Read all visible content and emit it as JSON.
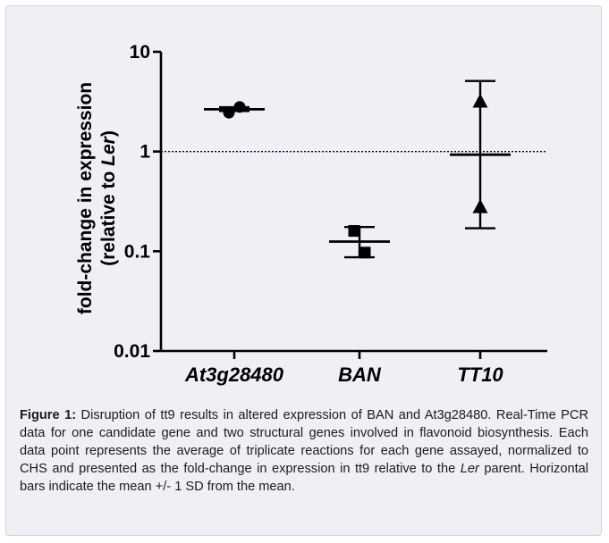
{
  "chart_data": {
    "type": "scatter",
    "yscale": "log",
    "ylim": [
      0.01,
      10
    ],
    "y_ticks": [
      {
        "value": 10,
        "label": "10"
      },
      {
        "value": 1,
        "label": "1"
      },
      {
        "value": 0.1,
        "label": "0.1"
      },
      {
        "value": 0.01,
        "label": "0.01"
      }
    ],
    "ylabel_line1": "fold-change in expression",
    "ylabel_line2_pre": "(relative to ",
    "ylabel_line2_ital": "Ler",
    "ylabel_line2_post": ")",
    "reference_line": 1,
    "categories": [
      "At3g28480",
      "BAN",
      "TT10"
    ],
    "groups": [
      {
        "name": "At3g28480",
        "marker": "circle",
        "points": [
          2.45,
          2.8
        ],
        "mean": 2.65,
        "sd_low": 2.55,
        "sd_high": 2.78
      },
      {
        "name": "BAN",
        "marker": "square",
        "points": [
          0.16,
          0.097
        ],
        "mean": 0.125,
        "sd_low": 0.087,
        "sd_high": 0.175
      },
      {
        "name": "TT10",
        "marker": "triangle",
        "points": [
          3.2,
          0.28
        ],
        "mean": 0.93,
        "sd_low": 0.17,
        "sd_high": 5.1
      }
    ]
  },
  "caption": {
    "label": "Figure 1:",
    "text_before_ital": " Disruption of tt9 results in altered expression of BAN and At3g28480. Real-Time PCR data for one candidate gene and two structural genes involved in flavonoid biosynthesis. Each data point represents the average of triplicate reactions for each gene assayed, normalized to CHS and presented as the fold-change in expression in tt9 relative to the ",
    "ital": "Ler",
    "text_after_ital": " parent.  Horizontal bars indicate the mean +/- 1 SD from the mean."
  }
}
